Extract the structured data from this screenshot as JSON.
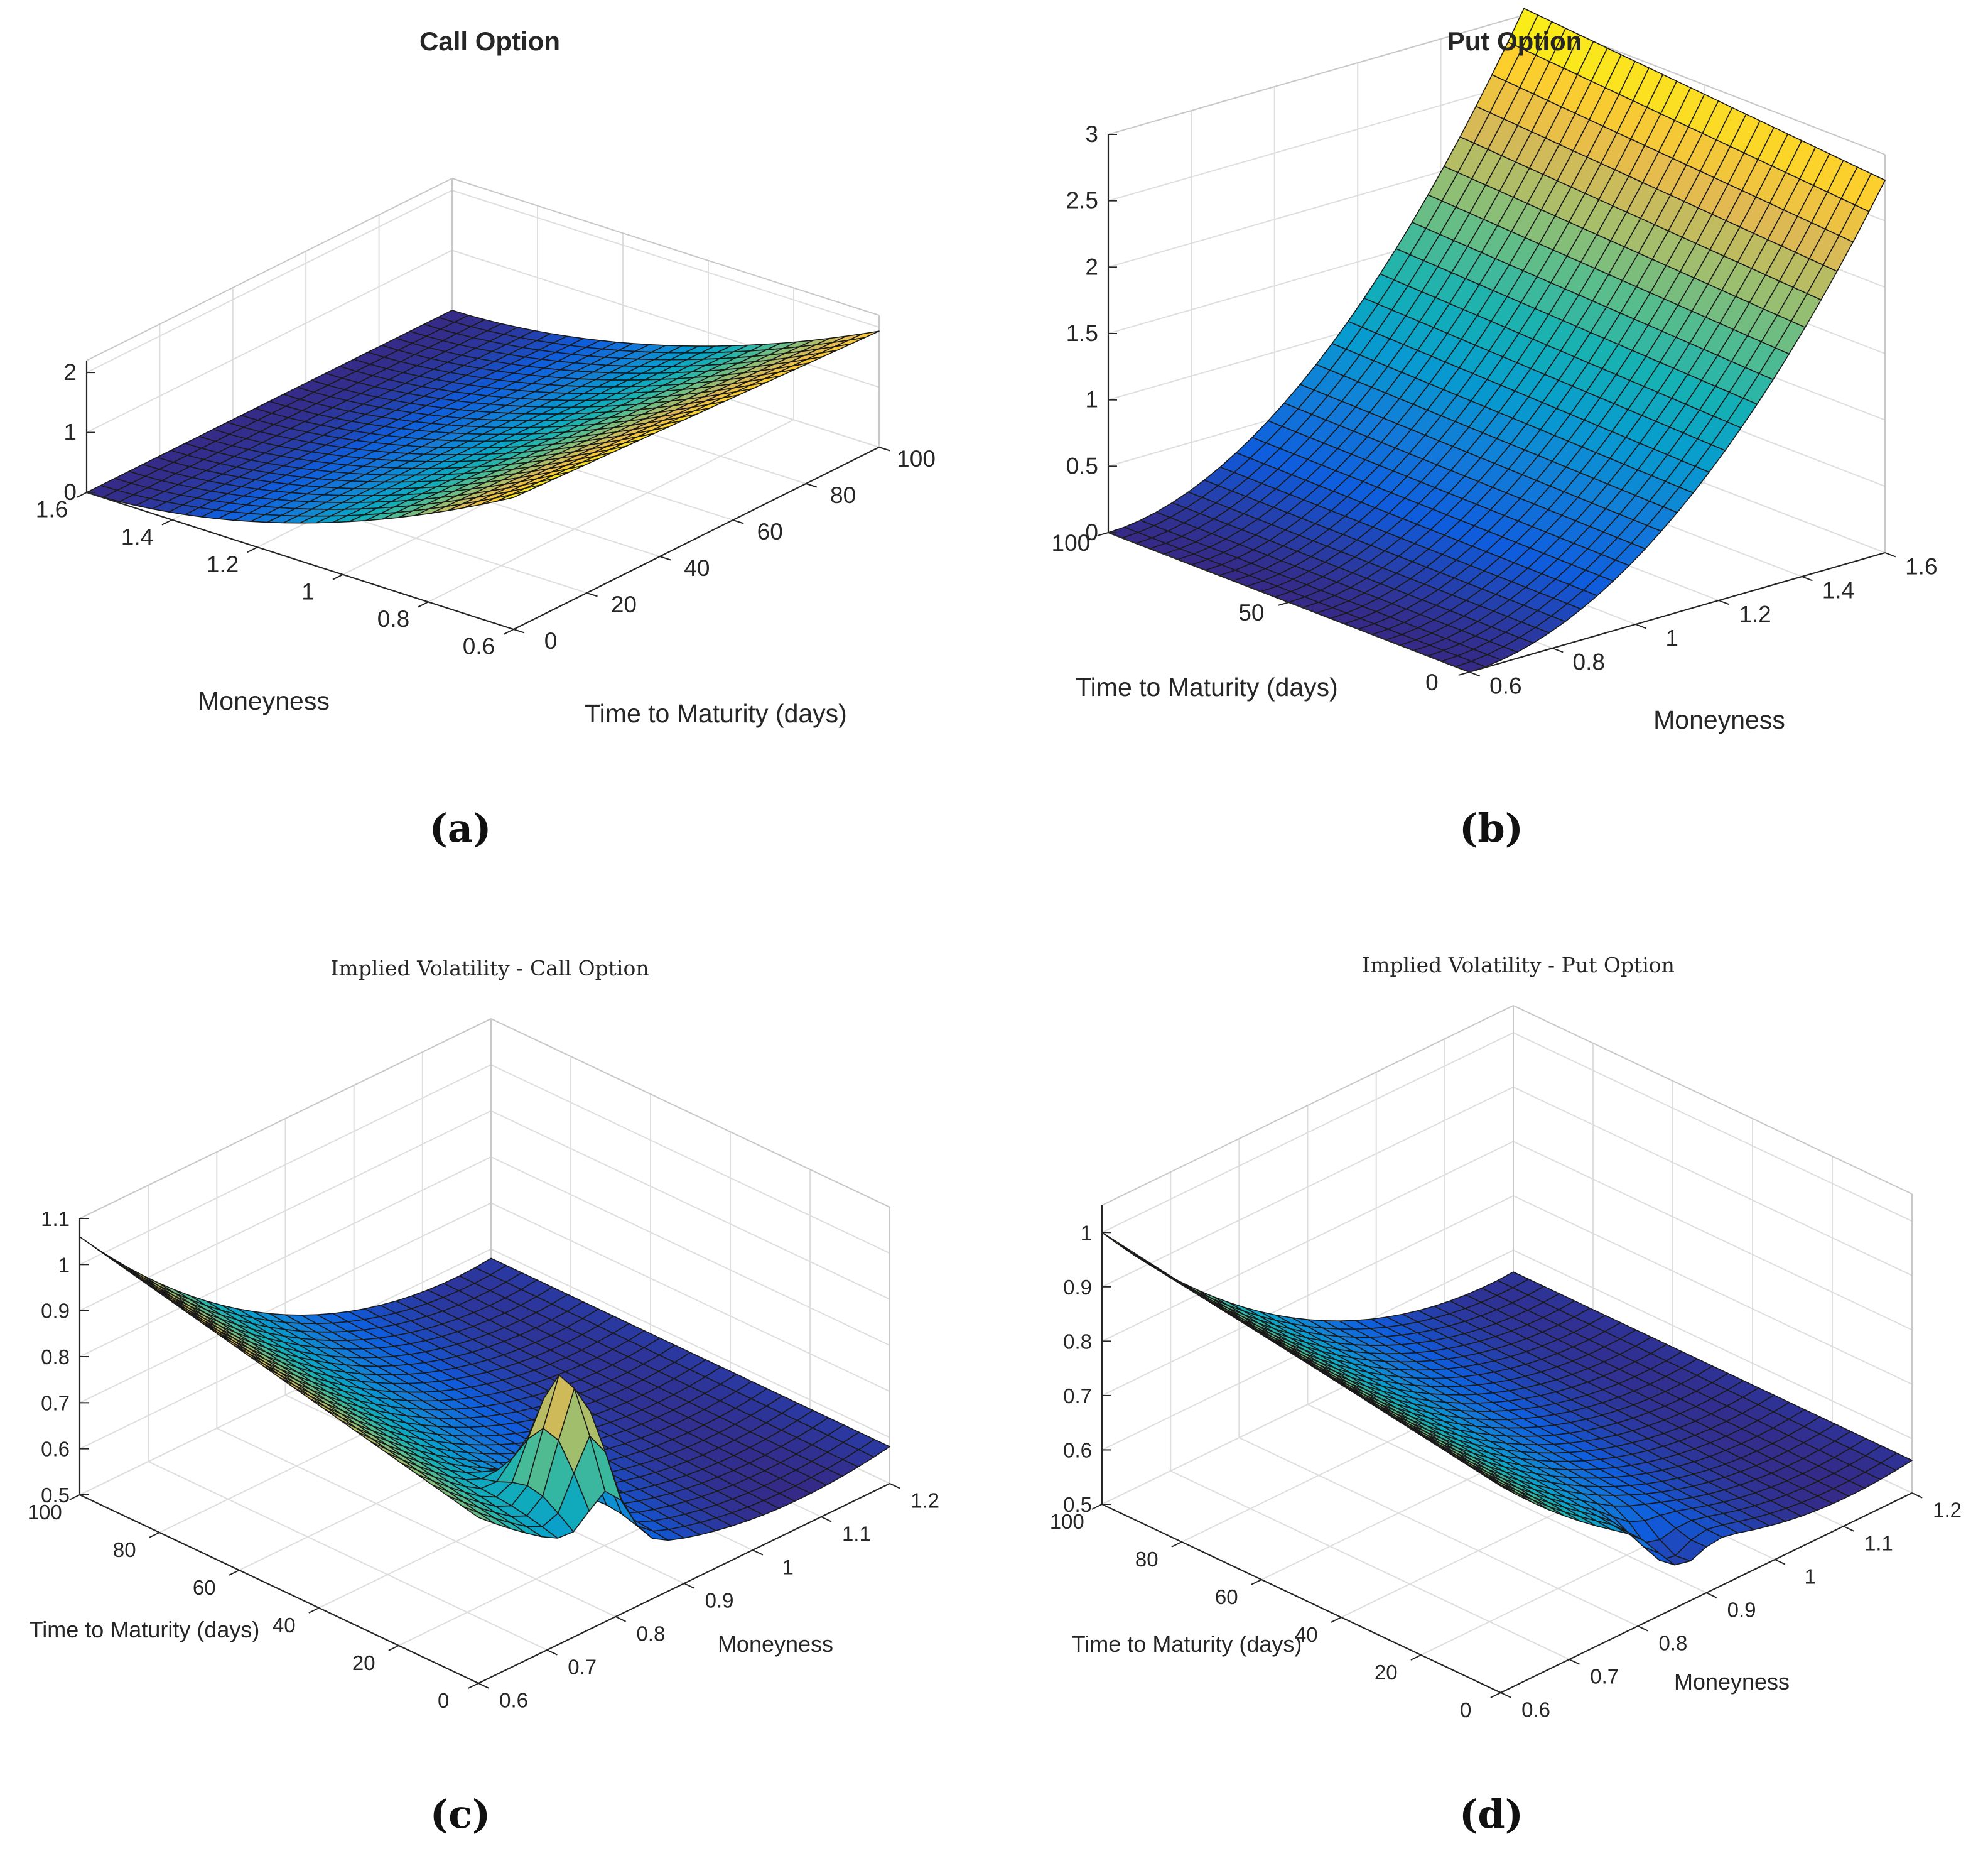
{
  "chart_data": [
    {
      "id": "a",
      "type": "surface3d",
      "title": "Call Option",
      "caption": "(a)",
      "x": {
        "label": "Moneyness",
        "range": [
          0.6,
          1.6
        ],
        "ticks": [
          "0.6",
          "0.8",
          "1",
          "1.2",
          "1.4",
          "1.6"
        ]
      },
      "y": {
        "label": "Time to Maturity (days)",
        "range": [
          0,
          100
        ],
        "ticks": [
          "0",
          "20",
          "40",
          "60",
          "80",
          "100"
        ]
      },
      "z": {
        "label": "",
        "range": [
          0,
          2.2
        ],
        "ticks": [
          "0",
          "1",
          "2"
        ]
      },
      "surface": "call option price vs moneyness and maturity; high (about 2.2) at moneyness 0.6, decaying toward 0 at moneyness 1.6"
    },
    {
      "id": "b",
      "type": "surface3d",
      "title": "Put Option",
      "caption": "(b)",
      "x": {
        "label": "Moneyness",
        "range": [
          0.6,
          1.6
        ],
        "ticks": [
          "0.6",
          "0.8",
          "1",
          "1.2",
          "1.4",
          "1.6"
        ]
      },
      "y": {
        "label": "Time to Maturity (days)",
        "range": [
          0,
          100
        ],
        "ticks": [
          "0",
          "50",
          "100"
        ]
      },
      "z": {
        "label": "",
        "range": [
          0,
          3
        ],
        "ticks": [
          "0",
          "0.5",
          "1",
          "1.5",
          "2",
          "2.5",
          "3"
        ]
      },
      "surface": "put option price; near 0 at moneyness 0.6, rising to about 3 at moneyness 1.6"
    },
    {
      "id": "c",
      "type": "surface3d",
      "title": "Implied Volatility - Call Option",
      "caption": "(c)",
      "x": {
        "label": "Moneyness",
        "range": [
          0.6,
          1.2
        ],
        "ticks": [
          "0.6",
          "0.7",
          "0.8",
          "0.9",
          "1",
          "1.1",
          "1.2"
        ]
      },
      "y": {
        "label": "Time to Maturity (days)",
        "range": [
          0,
          100
        ],
        "ticks": [
          "0",
          "20",
          "40",
          "60",
          "80",
          "100"
        ]
      },
      "z": {
        "label": "",
        "range": [
          0.5,
          1.1
        ],
        "ticks": [
          "0.5",
          "0.6",
          "0.7",
          "0.8",
          "0.9",
          "1",
          "1.1"
        ]
      },
      "surface": "implied volatility smile; about 0.85 at moneyness 0.6 rising to about 1.05 at long maturity, minimum about 0.5 near moneyness 1.0, spike near short maturity"
    },
    {
      "id": "d",
      "type": "surface3d",
      "title": "Implied Volatility - Put Option",
      "caption": "(d)",
      "x": {
        "label": "Moneyness",
        "range": [
          0.6,
          1.2
        ],
        "ticks": [
          "0.6",
          "0.7",
          "0.8",
          "0.9",
          "1",
          "1.1",
          "1.2"
        ]
      },
      "y": {
        "label": "Time to Maturity (days)",
        "range": [
          0,
          100
        ],
        "ticks": [
          "0",
          "20",
          "40",
          "60",
          "80",
          "100"
        ]
      },
      "z": {
        "label": "",
        "range": [
          0.5,
          1.05
        ],
        "ticks": [
          "0.5",
          "0.6",
          "0.7",
          "0.8",
          "0.9",
          "1"
        ]
      },
      "surface": "implied volatility; about 0.9 at moneyness 0.6 rising to about 1.0 at long maturity, minimum about 0.5 near moneyness 1.0 at short maturity"
    }
  ]
}
